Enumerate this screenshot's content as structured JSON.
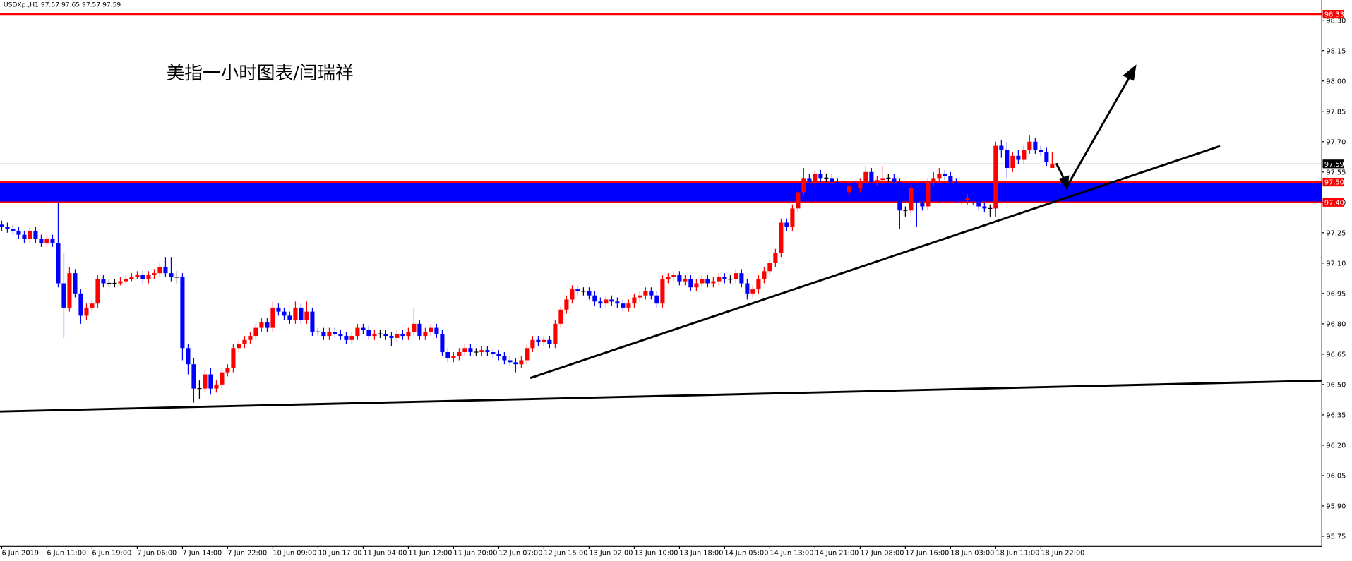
{
  "chart_data": {
    "type": "candlestick",
    "header": "USDXp.,H1  97.57 97.65 97.57 97.59",
    "annotation": "美指一小时图表/闫瑞祥",
    "up_color": "#ff0000",
    "down_color": "#0000ff",
    "doji_color": "#000000",
    "ylim": [
      95.7,
      98.4
    ],
    "yticks": [
      {
        "value": 98.3,
        "label": "98.30"
      },
      98.15,
      {
        "value": 98.0,
        "label": "98.00"
      },
      97.85,
      {
        "value": 97.7,
        "label": "97.70"
      },
      97.55,
      {
        "value": 97.4,
        "label": "97.40"
      },
      97.25,
      {
        "value": 97.1,
        "label": "97.10"
      },
      96.95,
      {
        "value": 96.8,
        "label": "96.80"
      },
      96.65,
      {
        "value": 96.5,
        "label": "96.50"
      },
      96.35,
      {
        "value": 96.2,
        "label": "96.20"
      },
      96.05,
      {
        "value": 95.9,
        "label": "95.90"
      },
      95.75
    ],
    "resistance": {
      "value": 98.33,
      "color": "#ff0000"
    },
    "last_price": {
      "value": 97.59,
      "color": "#000000"
    },
    "zone": {
      "high": {
        "value": 97.5,
        "label": "97.50"
      },
      "low": {
        "value": 97.4,
        "label": "97.40"
      },
      "color": "#0000ff",
      "border_color": "#ff0000"
    },
    "categories": [
      "6 Jun 2019",
      null,
      null,
      null,
      null,
      null,
      null,
      null,
      "6 Jun 11:00",
      null,
      null,
      null,
      null,
      null,
      null,
      null,
      "6 Jun 19:00",
      null,
      null,
      null,
      null,
      null,
      null,
      null,
      "7 Jun 06:00",
      null,
      null,
      null,
      null,
      null,
      null,
      null,
      "7 Jun 14:00",
      null,
      null,
      null,
      null,
      null,
      null,
      null,
      "7 Jun 22:00",
      null,
      null,
      null,
      null,
      null,
      null,
      null,
      "10 Jun 09:00",
      null,
      null,
      null,
      null,
      null,
      null,
      null,
      "10 Jun 17:00",
      null,
      null,
      null,
      null,
      null,
      null,
      null,
      "11 Jun 04:00",
      null,
      null,
      null,
      null,
      null,
      null,
      null,
      "11 Jun 12:00",
      null,
      null,
      null,
      null,
      null,
      null,
      null,
      "11 Jun 20:00",
      null,
      null,
      null,
      null,
      null,
      null,
      null,
      "12 Jun 07:00",
      null,
      null,
      null,
      null,
      null,
      null,
      null,
      "12 Jun 15:00",
      null,
      null,
      null,
      null,
      null,
      null,
      null,
      "13 Jun 02:00",
      null,
      null,
      null,
      null,
      null,
      null,
      null,
      "13 Jun 10:00",
      null,
      null,
      null,
      null,
      null,
      null,
      null,
      "13 Jun 18:00",
      null,
      null,
      null,
      null,
      null,
      null,
      null,
      "14 Jun 05:00",
      null,
      null,
      null,
      null,
      null,
      null,
      null,
      "14 Jun 13:00",
      null,
      null,
      null,
      null,
      null,
      null,
      null,
      "14 Jun 21:00",
      null,
      null,
      null,
      null,
      null,
      null,
      null,
      "17 Jun 08:00",
      null,
      null,
      null,
      null,
      null,
      null,
      null,
      "17 Jun 16:00",
      null,
      null,
      null,
      null,
      null,
      null,
      null,
      "18 Jun 03:00",
      null,
      null,
      null,
      null,
      null,
      null,
      null,
      "18 Jun 11:00",
      null,
      null,
      null,
      null,
      null,
      null,
      null,
      "18 Jun 22:00",
      null,
      null
    ],
    "open": [
      97.29,
      97.28,
      97.27,
      97.26,
      97.24,
      97.22,
      97.26,
      97.22,
      97.2,
      97.22,
      97.2,
      97.0,
      96.88,
      97.05,
      96.95,
      96.84,
      96.88,
      96.9,
      97.02,
      97.0,
      97.0,
      97.0,
      97.01,
      97.02,
      97.03,
      97.04,
      97.02,
      97.04,
      97.05,
      97.08,
      97.05,
      97.03,
      97.03,
      96.68,
      96.6,
      96.48,
      96.48,
      96.55,
      96.48,
      96.5,
      96.56,
      96.58,
      96.68,
      96.7,
      96.72,
      96.74,
      96.78,
      96.81,
      96.78,
      96.88,
      96.86,
      96.84,
      96.82,
      96.88,
      96.82,
      96.86,
      96.76,
      96.76,
      96.74,
      96.76,
      96.75,
      96.74,
      96.72,
      96.74,
      96.78,
      96.77,
      96.74,
      96.75,
      96.75,
      96.74,
      96.73,
      96.75,
      96.74,
      96.76,
      96.8,
      96.74,
      96.76,
      96.78,
      96.75,
      96.66,
      96.63,
      96.64,
      96.66,
      96.68,
      96.66,
      96.66,
      96.67,
      96.66,
      96.65,
      96.64,
      96.62,
      96.61,
      96.6,
      96.62,
      96.68,
      96.72,
      96.71,
      96.72,
      96.7,
      96.8,
      96.87,
      96.92,
      96.97,
      96.96,
      96.96,
      96.94,
      96.91,
      96.9,
      96.92,
      96.91,
      96.9,
      96.88,
      96.9,
      96.93,
      96.94,
      96.96,
      96.94,
      96.9,
      97.02,
      97.03,
      97.04,
      97.01,
      97.02,
      96.98,
      97.0,
      97.02,
      97.0,
      97.01,
      97.03,
      97.02,
      97.02,
      97.05,
      97.0,
      96.95,
      96.97,
      97.02,
      97.06,
      97.1,
      97.15,
      97.3,
      97.28,
      97.37,
      97.45,
      97.52,
      97.5,
      97.54,
      97.52,
      97.52,
      97.5,
      97.48,
      97.45,
      97.48,
      97.47,
      97.5,
      97.55,
      97.5,
      97.51,
      97.52,
      97.52,
      97.5,
      97.36,
      97.36,
      97.47,
      97.4,
      97.38,
      97.5,
      97.52,
      97.54,
      97.53,
      97.5,
      97.42,
      97.41,
      97.42,
      97.41,
      97.38,
      97.37,
      97.37,
      97.68,
      97.66,
      97.57,
      97.63,
      97.61,
      97.66,
      97.7,
      97.66,
      97.65,
      97.57
    ],
    "high": [
      97.31,
      97.3,
      97.29,
      97.28,
      97.26,
      97.28,
      97.28,
      97.24,
      97.24,
      97.24,
      97.4,
      97.15,
      97.08,
      97.07,
      96.97,
      96.9,
      96.92,
      97.04,
      97.04,
      97.02,
      97.02,
      97.03,
      97.04,
      97.05,
      97.06,
      97.06,
      97.06,
      97.07,
      97.1,
      97.13,
      97.13,
      97.06,
      97.05,
      96.7,
      96.63,
      96.52,
      96.57,
      96.58,
      96.52,
      96.58,
      96.6,
      96.7,
      96.72,
      96.74,
      96.76,
      96.8,
      96.83,
      96.83,
      96.91,
      96.9,
      96.88,
      96.86,
      96.91,
      96.9,
      96.91,
      96.88,
      96.78,
      96.78,
      96.78,
      96.78,
      96.77,
      96.76,
      96.76,
      96.8,
      96.8,
      96.79,
      96.77,
      96.77,
      96.77,
      96.76,
      96.77,
      96.77,
      96.78,
      96.88,
      96.82,
      96.78,
      96.8,
      96.8,
      96.77,
      96.68,
      96.66,
      96.68,
      96.7,
      96.7,
      96.68,
      96.69,
      96.69,
      96.68,
      96.67,
      96.66,
      96.64,
      96.63,
      96.64,
      96.7,
      96.74,
      96.74,
      96.74,
      96.74,
      96.82,
      96.89,
      96.94,
      96.99,
      96.99,
      96.98,
      96.98,
      96.96,
      96.93,
      96.94,
      96.94,
      96.93,
      96.92,
      96.92,
      96.95,
      96.96,
      96.98,
      96.98,
      96.96,
      97.04,
      97.05,
      97.06,
      97.06,
      97.04,
      97.04,
      97.02,
      97.04,
      97.04,
      97.03,
      97.05,
      97.05,
      97.04,
      97.07,
      97.07,
      97.02,
      96.99,
      97.04,
      97.08,
      97.12,
      97.17,
      97.32,
      97.32,
      97.39,
      97.47,
      97.57,
      97.54,
      97.56,
      97.56,
      97.54,
      97.54,
      97.52,
      97.5,
      97.5,
      97.5,
      97.52,
      97.58,
      97.57,
      97.53,
      97.58,
      97.54,
      97.54,
      97.52,
      97.38,
      97.49,
      97.49,
      97.42,
      97.52,
      97.55,
      97.57,
      97.56,
      97.55,
      97.52,
      97.44,
      97.44,
      97.44,
      97.43,
      97.4,
      97.39,
      97.7,
      97.71,
      97.7,
      97.65,
      97.66,
      97.68,
      97.73,
      97.72,
      97.68,
      97.67,
      97.65
    ],
    "low": [
      97.26,
      97.25,
      97.24,
      97.22,
      97.2,
      97.2,
      97.2,
      97.18,
      97.18,
      97.18,
      96.98,
      96.73,
      96.86,
      96.93,
      96.8,
      96.82,
      96.86,
      96.88,
      96.98,
      96.98,
      96.98,
      96.99,
      97.0,
      97.01,
      97.02,
      97.0,
      97.0,
      97.02,
      97.03,
      97.03,
      97.01,
      97.0,
      96.62,
      96.55,
      96.41,
      96.43,
      96.46,
      96.45,
      96.46,
      96.48,
      96.54,
      96.56,
      96.66,
      96.68,
      96.7,
      96.72,
      96.76,
      96.76,
      96.76,
      96.84,
      96.82,
      96.8,
      96.8,
      96.8,
      96.8,
      96.74,
      96.74,
      96.72,
      96.72,
      96.73,
      96.72,
      96.7,
      96.7,
      96.72,
      96.75,
      96.72,
      96.72,
      96.73,
      96.72,
      96.69,
      96.71,
      96.72,
      96.72,
      96.74,
      96.72,
      96.72,
      96.74,
      96.73,
      96.64,
      96.61,
      96.61,
      96.62,
      96.64,
      96.64,
      96.64,
      96.64,
      96.64,
      96.63,
      96.62,
      96.6,
      96.59,
      96.56,
      96.58,
      96.6,
      96.66,
      96.69,
      96.69,
      96.68,
      96.68,
      96.78,
      96.85,
      96.9,
      96.94,
      96.94,
      96.92,
      96.89,
      96.88,
      96.88,
      96.89,
      96.88,
      96.86,
      96.86,
      96.88,
      96.91,
      96.92,
      96.92,
      96.88,
      96.88,
      97.0,
      97.01,
      96.99,
      96.99,
      96.96,
      96.96,
      96.98,
      96.98,
      96.98,
      96.99,
      97.0,
      97.0,
      97.0,
      96.98,
      96.92,
      96.93,
      96.95,
      97.0,
      97.04,
      97.08,
      97.13,
      97.26,
      97.26,
      97.35,
      97.43,
      97.48,
      97.48,
      97.5,
      97.5,
      97.48,
      97.46,
      97.43,
      97.43,
      97.45,
      97.45,
      97.48,
      97.48,
      97.48,
      97.49,
      97.5,
      97.48,
      97.27,
      97.33,
      97.34,
      97.28,
      97.36,
      97.36,
      97.48,
      97.5,
      97.51,
      97.48,
      97.4,
      97.39,
      97.39,
      97.39,
      97.36,
      97.35,
      97.33,
      97.33,
      97.62,
      97.52,
      97.55,
      97.59,
      97.59,
      97.64,
      97.64,
      97.63,
      97.58,
      97.57
    ],
    "close": [
      97.28,
      97.27,
      97.26,
      97.24,
      97.22,
      97.26,
      97.22,
      97.2,
      97.22,
      97.2,
      97.0,
      96.88,
      97.05,
      96.95,
      96.84,
      96.88,
      96.9,
      97.02,
      97.0,
      97.0,
      97.0,
      97.01,
      97.02,
      97.03,
      97.04,
      97.02,
      97.04,
      97.05,
      97.08,
      97.05,
      97.03,
      97.03,
      96.68,
      96.6,
      96.48,
      96.48,
      96.55,
      96.48,
      96.5,
      96.56,
      96.58,
      96.68,
      96.7,
      96.72,
      96.74,
      96.78,
      96.81,
      96.78,
      96.88,
      96.86,
      96.84,
      96.82,
      96.88,
      96.82,
      96.86,
      96.76,
      96.76,
      96.74,
      96.76,
      96.75,
      96.74,
      96.72,
      96.74,
      96.78,
      96.77,
      96.74,
      96.75,
      96.75,
      96.74,
      96.73,
      96.75,
      96.74,
      96.76,
      96.8,
      96.74,
      96.76,
      96.78,
      96.75,
      96.66,
      96.63,
      96.64,
      96.66,
      96.68,
      96.66,
      96.66,
      96.67,
      96.66,
      96.65,
      96.64,
      96.62,
      96.61,
      96.6,
      96.62,
      96.68,
      96.72,
      96.71,
      96.72,
      96.7,
      96.8,
      96.87,
      96.92,
      96.97,
      96.96,
      96.96,
      96.94,
      96.91,
      96.9,
      96.92,
      96.91,
      96.9,
      96.88,
      96.9,
      96.93,
      96.94,
      96.96,
      96.94,
      96.9,
      97.02,
      97.03,
      97.04,
      97.01,
      97.02,
      96.98,
      97.0,
      97.02,
      97.0,
      97.01,
      97.03,
      97.02,
      97.02,
      97.05,
      97.0,
      96.95,
      96.97,
      97.02,
      97.06,
      97.1,
      97.15,
      97.3,
      97.28,
      97.37,
      97.45,
      97.52,
      97.5,
      97.54,
      97.52,
      97.52,
      97.5,
      97.48,
      97.45,
      97.48,
      97.47,
      97.5,
      97.55,
      97.5,
      97.51,
      97.52,
      97.52,
      97.5,
      97.36,
      97.36,
      97.47,
      97.4,
      97.38,
      97.5,
      97.52,
      97.54,
      97.53,
      97.5,
      97.42,
      97.41,
      97.42,
      97.41,
      97.38,
      97.37,
      97.37,
      97.68,
      97.66,
      97.57,
      97.63,
      97.61,
      97.66,
      97.7,
      97.66,
      97.65,
      97.6,
      97.59
    ]
  }
}
